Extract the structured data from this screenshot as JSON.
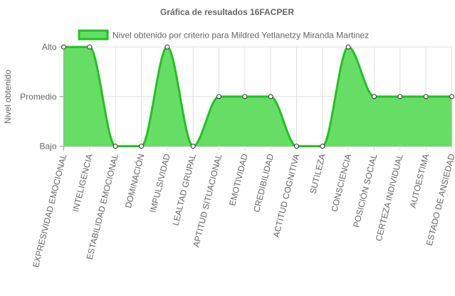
{
  "chart_data": {
    "type": "area",
    "title": "Gráfica de resultados 16FACPER",
    "ylabel": "Nivel obtenido",
    "xlabel": "",
    "y_levels": [
      "Bajo",
      "Promedio",
      "Alto"
    ],
    "ylim": [
      0,
      2
    ],
    "categories": [
      "EXPRESIVIDAD EMOCIONAL",
      "INTELIGENCIA",
      "ESTABILIDAD EMOCIONAL",
      "DOMINACIÓN",
      "IMPULSIVIDAD",
      "LEALTAD GRUPAL",
      "APTITUD SITUACIONAL",
      "EMOTIVIDAD",
      "CREDIBILIDAD",
      "ACTITUD COGNITIVA",
      "SUTILEZA",
      "CONSCIENCIA",
      "POSICIÓN SOCIAL",
      "CERTEZA INDIVIDUAL",
      "AUTOESTIMA",
      "ESTADO DE ANSIEDAD"
    ],
    "series": [
      {
        "name": "Nivel obtenido por criterio para Mildred Yetlanetzy Miranda Martinez",
        "values": [
          2,
          2,
          0,
          0,
          2,
          0,
          1,
          1,
          1,
          0,
          0,
          2,
          1,
          1,
          1,
          1
        ],
        "value_labels": [
          "Alto",
          "Alto",
          "Bajo",
          "Bajo",
          "Alto",
          "Bajo",
          "Promedio",
          "Promedio",
          "Promedio",
          "Bajo",
          "Bajo",
          "Alto",
          "Promedio",
          "Promedio",
          "Promedio",
          "Promedio"
        ]
      }
    ],
    "legend_position": "top",
    "grid": true,
    "colors": {
      "line": "#22c122",
      "fill": "#66de66",
      "point_fill": "#ffffff",
      "point_stroke": "#333333",
      "grid": "#e0e0e0",
      "axis": "#999999"
    }
  }
}
